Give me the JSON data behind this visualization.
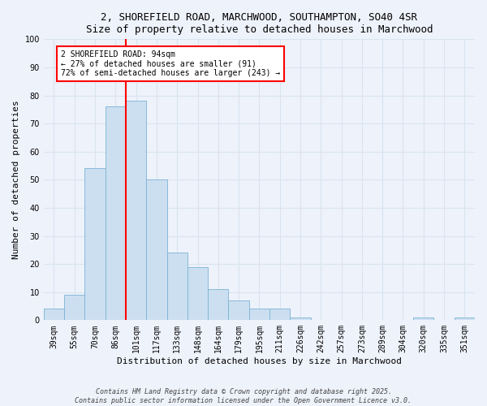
{
  "title": "2, SHOREFIELD ROAD, MARCHWOOD, SOUTHAMPTON, SO40 4SR",
  "subtitle": "Size of property relative to detached houses in Marchwood",
  "xlabel": "Distribution of detached houses by size in Marchwood",
  "ylabel": "Number of detached properties",
  "bar_color": "#ccdff0",
  "bar_edge_color": "#7ab3d4",
  "bg_color": "#eef2fb",
  "grid_color": "#d8e4f0",
  "categories": [
    "39sqm",
    "55sqm",
    "70sqm",
    "86sqm",
    "101sqm",
    "117sqm",
    "133sqm",
    "148sqm",
    "164sqm",
    "179sqm",
    "195sqm",
    "211sqm",
    "226sqm",
    "242sqm",
    "257sqm",
    "273sqm",
    "289sqm",
    "304sqm",
    "320sqm",
    "335sqm",
    "351sqm"
  ],
  "bar_heights": [
    4,
    9,
    54,
    76,
    78,
    50,
    24,
    19,
    11,
    7,
    4,
    4,
    1,
    0,
    0,
    0,
    0,
    0,
    1,
    0,
    1
  ],
  "red_line_x": 3.5,
  "ylim": [
    0,
    100
  ],
  "annotation_line1": "2 SHOREFIELD ROAD: 94sqm",
  "annotation_line2": "← 27% of detached houses are smaller (91)",
  "annotation_line3": "72% of semi-detached houses are larger (243) →",
  "footer_line1": "Contains HM Land Registry data © Crown copyright and database right 2025.",
  "footer_line2": "Contains public sector information licensed under the Open Government Licence v3.0.",
  "title_fontsize": 9,
  "axis_fontsize": 8,
  "tick_fontsize": 7,
  "footer_fontsize": 6
}
